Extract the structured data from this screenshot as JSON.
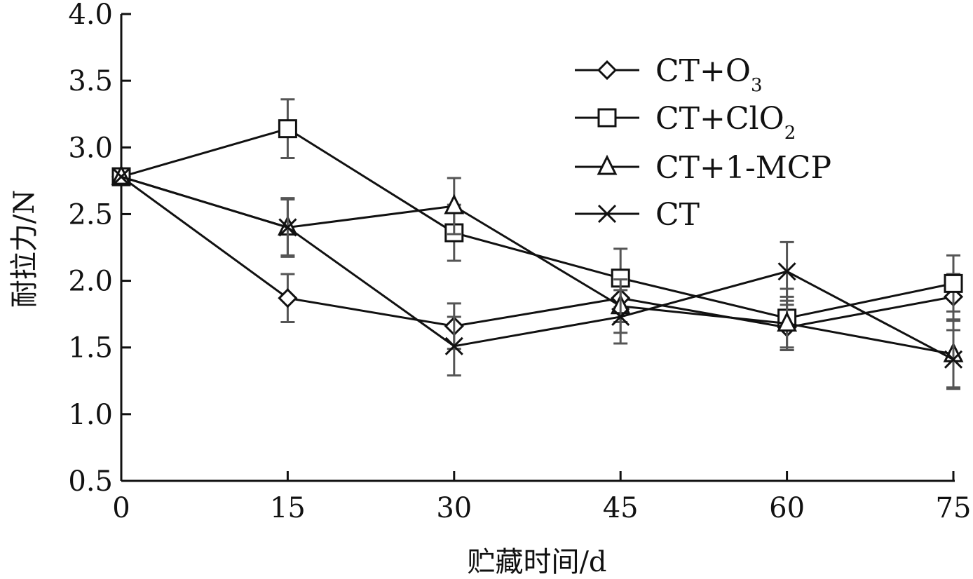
{
  "chart_data": {
    "type": "line",
    "title": "",
    "xlabel": "贮藏时间/d",
    "ylabel": "耐拉力/N",
    "x": [
      0,
      15,
      30,
      45,
      60,
      75
    ],
    "x_ticks": [
      "0",
      "15",
      "30",
      "45",
      "60",
      "75"
    ],
    "y_ticks": [
      "0.5",
      "1.0",
      "1.5",
      "2.0",
      "2.5",
      "3.0",
      "3.5",
      "4.0"
    ],
    "xlim": [
      0,
      75
    ],
    "ylim": [
      0.5,
      4.0
    ],
    "grid": false,
    "legend_position": "top-right",
    "series": [
      {
        "name_main": "CT+O",
        "name_sub": "3",
        "marker": "diamond",
        "values": [
          2.78,
          1.87,
          1.66,
          1.87,
          1.65,
          1.88
        ],
        "errors": [
          0.0,
          0.18,
          0.17,
          0.18,
          0.17,
          0.17
        ]
      },
      {
        "name_main": "CT+ClO",
        "name_sub": "2",
        "marker": "square",
        "values": [
          2.78,
          3.14,
          2.36,
          2.02,
          1.72,
          1.98
        ],
        "errors": [
          0.0,
          0.22,
          0.21,
          0.22,
          0.22,
          0.21
        ]
      },
      {
        "name_main": "CT+1-MCP",
        "name_sub": "",
        "marker": "triangle",
        "values": [
          2.78,
          2.4,
          2.56,
          1.81,
          1.68,
          1.45
        ],
        "errors": [
          0.0,
          0.21,
          0.21,
          0.2,
          0.2,
          0.25
        ]
      },
      {
        "name_main": "CT",
        "name_sub": "",
        "marker": "x",
        "values": [
          2.78,
          2.4,
          1.51,
          1.73,
          2.07,
          1.41
        ],
        "errors": [
          0.0,
          0.22,
          0.22,
          0.2,
          0.22,
          0.22
        ]
      }
    ],
    "colors": {
      "line": "#111111",
      "error_bar": "#555555",
      "marker_fill": "#ffffff"
    }
  }
}
